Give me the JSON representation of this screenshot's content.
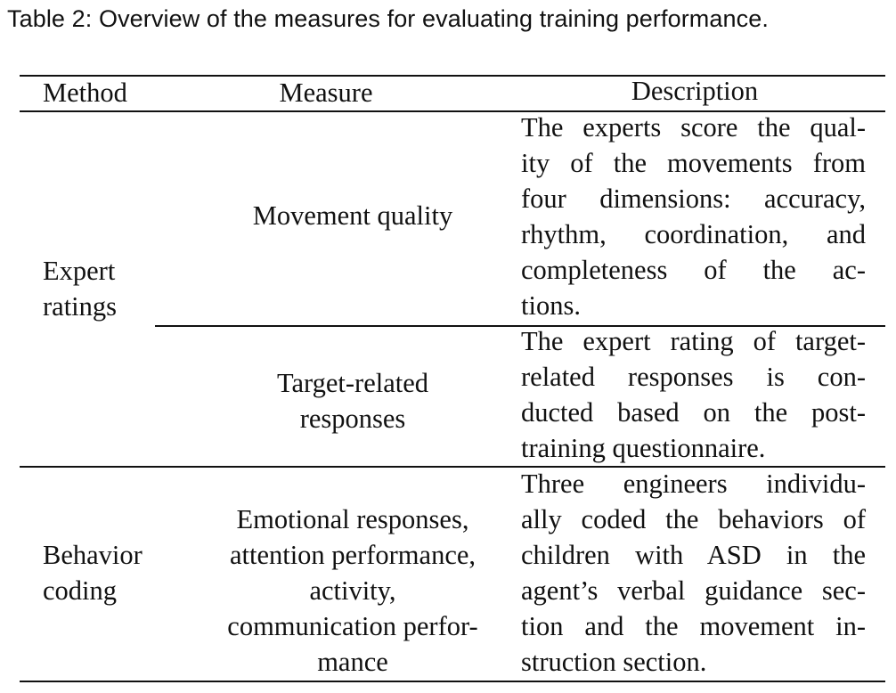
{
  "caption": "Table 2: Overview of the measures for evaluating training performance.",
  "table": {
    "headers": {
      "method": "Method",
      "measure": "Measure",
      "description": "Description"
    },
    "groups": [
      {
        "method_lines": [
          "Expert",
          "ratings"
        ],
        "rows": [
          {
            "measure_lines": [
              "Movement quality"
            ],
            "description_lines": [
              "The experts score the qual-",
              "ity of the movements from",
              "four dimensions: accuracy,",
              "rhythm, coordination, and",
              "completeness of the ac-",
              "tions."
            ]
          },
          {
            "measure_lines": [
              "Target-related",
              "responses"
            ],
            "description_lines": [
              "The expert rating of target-",
              "related responses is con-",
              "ducted based on the post-",
              "training questionnaire."
            ]
          }
        ]
      },
      {
        "method_lines": [
          "Behavior",
          "coding"
        ],
        "rows": [
          {
            "measure_lines": [
              "Emotional responses,",
              "attention performance,",
              "activity,",
              "communication perfor-",
              "mance"
            ],
            "description_lines": [
              "Three engineers individu-",
              "ally coded the behaviors of",
              "children with ASD in the",
              "agent’s verbal guidance sec-",
              "tion and the movement in-",
              "struction section."
            ]
          }
        ]
      }
    ]
  }
}
